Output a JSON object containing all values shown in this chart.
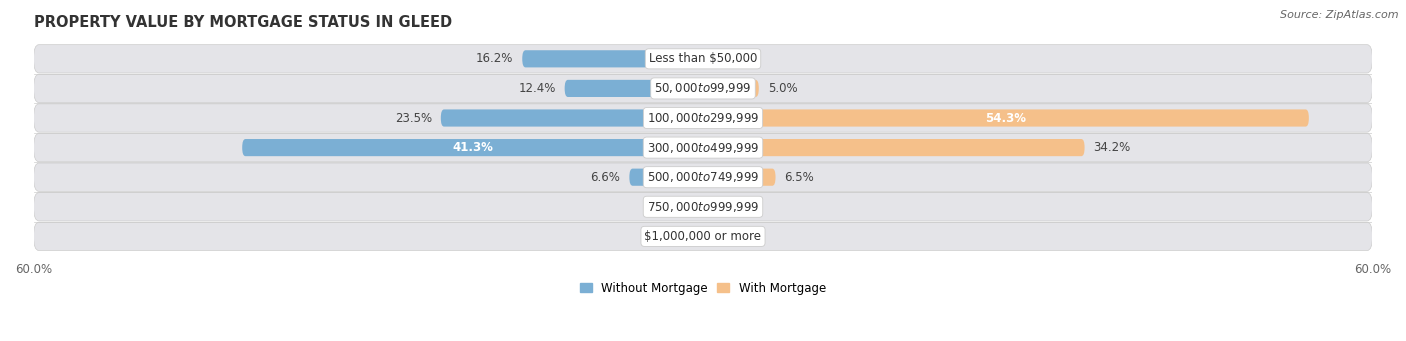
{
  "title": "PROPERTY VALUE BY MORTGAGE STATUS IN GLEED",
  "source": "Source: ZipAtlas.com",
  "categories": [
    "Less than $50,000",
    "$50,000 to $99,999",
    "$100,000 to $299,999",
    "$300,000 to $499,999",
    "$500,000 to $749,999",
    "$750,000 to $999,999",
    "$1,000,000 or more"
  ],
  "without_mortgage": [
    16.2,
    12.4,
    23.5,
    41.3,
    6.6,
    0.0,
    0.0
  ],
  "with_mortgage": [
    0.0,
    5.0,
    54.3,
    34.2,
    6.5,
    0.0,
    0.0
  ],
  "xlim": 60.0,
  "bar_color_without": "#7BAFD4",
  "bar_color_with": "#F5C08A",
  "background_bar": "#E4E4E8",
  "background_fig": "#FFFFFF",
  "title_fontsize": 10.5,
  "label_fontsize": 8.5,
  "tick_fontsize": 8.5,
  "source_fontsize": 8,
  "white_label_threshold": 35
}
